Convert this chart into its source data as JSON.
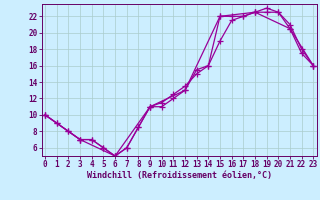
{
  "xlabel": "Windchill (Refroidissement éolien,°C)",
  "bg_color": "#cceeff",
  "line_color": "#990099",
  "grid_color": "#aacccc",
  "axis_color": "#660066",
  "text_color": "#660066",
  "series1_x": [
    0,
    1,
    2,
    3,
    4,
    5,
    6,
    7,
    8,
    9,
    10,
    11,
    12,
    13,
    14,
    15,
    16,
    17,
    18,
    19,
    20,
    21,
    22,
    23
  ],
  "series1_y": [
    10,
    9,
    8,
    7,
    7,
    6,
    5,
    6,
    8.5,
    11,
    11,
    12,
    13,
    15.5,
    16,
    19,
    21.5,
    22,
    22.5,
    23,
    22.5,
    21,
    18,
    16
  ],
  "series2_x": [
    0,
    1,
    2,
    3,
    4,
    5,
    6,
    7,
    8,
    9,
    10,
    11,
    12,
    13,
    14,
    15,
    16,
    17,
    18,
    19,
    20,
    21,
    22,
    23
  ],
  "series2_y": [
    10,
    9,
    8,
    7,
    7,
    6,
    5,
    6,
    8.5,
    11,
    11.5,
    12.5,
    13.5,
    15,
    16,
    22,
    22,
    22,
    22.5,
    22.5,
    22.5,
    20.5,
    17.5,
    16
  ],
  "series3_x": [
    0,
    3,
    6,
    9,
    12,
    15,
    18,
    21,
    23
  ],
  "series3_y": [
    10,
    7,
    5,
    11,
    13,
    22,
    22.5,
    20.5,
    16
  ],
  "xlim": [
    -0.3,
    23.3
  ],
  "ylim": [
    5.0,
    23.5
  ],
  "yticks": [
    6,
    8,
    10,
    12,
    14,
    16,
    18,
    20,
    22
  ],
  "xticks": [
    0,
    1,
    2,
    3,
    4,
    5,
    6,
    7,
    8,
    9,
    10,
    11,
    12,
    13,
    14,
    15,
    16,
    17,
    18,
    19,
    20,
    21,
    22,
    23
  ],
  "tick_fontsize": 5.5,
  "xlabel_fontsize": 6.0,
  "linewidth": 0.9,
  "markersize": 4.0
}
